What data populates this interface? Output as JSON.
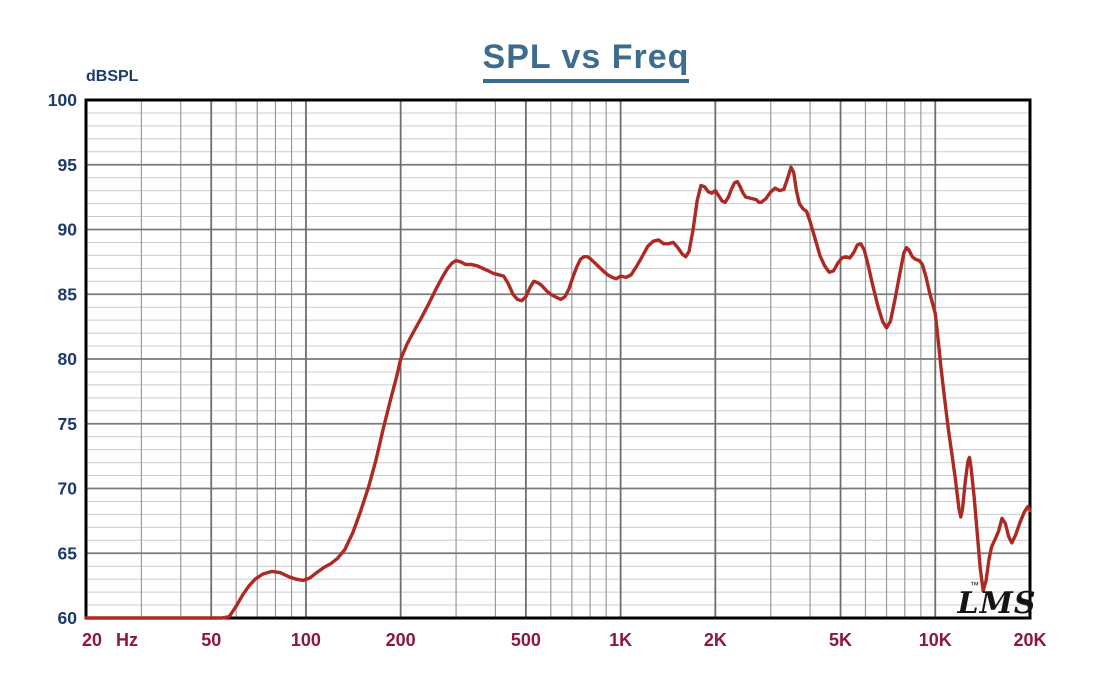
{
  "header": {
    "title": "SPL vs Freq",
    "y_axis_unit": "dBSPL"
  },
  "watermark": {
    "tm": "™",
    "text": "LMS"
  },
  "chart_data": {
    "type": "line",
    "title": "SPL vs Freq",
    "xlabel": "",
    "ylabel": "dBSPL",
    "x_scale": "log",
    "x_range": [
      20,
      20000
    ],
    "y_range": [
      60,
      100
    ],
    "y_major_step": 5,
    "y_minor_step": 1,
    "grid": "on",
    "legend": "none",
    "y_ticks": [
      {
        "value": 100,
        "label": "100"
      },
      {
        "value": 95,
        "label": "95"
      },
      {
        "value": 90,
        "label": "90"
      },
      {
        "value": 85,
        "label": "85"
      },
      {
        "value": 80,
        "label": "80"
      },
      {
        "value": 75,
        "label": "75"
      },
      {
        "value": 70,
        "label": "70"
      },
      {
        "value": 65,
        "label": "65"
      },
      {
        "value": 60,
        "label": "60"
      }
    ],
    "x_ticks_major": [
      {
        "f": 20,
        "label": "20"
      },
      {
        "f": 50,
        "label": "50"
      },
      {
        "f": 100,
        "label": "100"
      },
      {
        "f": 200,
        "label": "200"
      },
      {
        "f": 500,
        "label": "500"
      },
      {
        "f": 1000,
        "label": "1K"
      },
      {
        "f": 2000,
        "label": "2K"
      },
      {
        "f": 5000,
        "label": "5K"
      },
      {
        "f": 10000,
        "label": "10K"
      },
      {
        "f": 20000,
        "label": "20K"
      }
    ],
    "x_unit_label": "Hz",
    "x_ticks_minor": [
      30,
      40,
      60,
      70,
      80,
      90,
      300,
      400,
      600,
      700,
      800,
      900,
      3000,
      4000,
      6000,
      7000,
      8000,
      9000
    ],
    "colors": {
      "curve": "#ad2a24",
      "y_labels": "#1c3a6e",
      "x_labels": "#8e1838",
      "title": "#3d6c8d",
      "grid_minor_h": "#cccccc",
      "grid_major_h": "#7a7a7a",
      "grid_minor_v": "#9a9a9a",
      "grid_major_v": "#6e6e6e",
      "border": "#000000",
      "watermark": "#141414"
    },
    "series": [
      {
        "name": "SPL",
        "points": [
          [
            20,
            60
          ],
          [
            25,
            60
          ],
          [
            30,
            60
          ],
          [
            35,
            60
          ],
          [
            40,
            60
          ],
          [
            45,
            60
          ],
          [
            50,
            60
          ],
          [
            54,
            60
          ],
          [
            57,
            60.1
          ],
          [
            60,
            60.9
          ],
          [
            63,
            61.8
          ],
          [
            66,
            62.5
          ],
          [
            69,
            63.0
          ],
          [
            73,
            63.4
          ],
          [
            78,
            63.6
          ],
          [
            83,
            63.5
          ],
          [
            88,
            63.2
          ],
          [
            93,
            63.0
          ],
          [
            98,
            62.9
          ],
          [
            103,
            63.1
          ],
          [
            108,
            63.5
          ],
          [
            114,
            63.9
          ],
          [
            120,
            64.2
          ],
          [
            126,
            64.6
          ],
          [
            133,
            65.3
          ],
          [
            141,
            66.6
          ],
          [
            149,
            68.2
          ],
          [
            158,
            70.1
          ],
          [
            167,
            72.2
          ],
          [
            176,
            74.6
          ],
          [
            186,
            76.9
          ],
          [
            194,
            78.6
          ],
          [
            200,
            80.0
          ],
          [
            210,
            81.2
          ],
          [
            221,
            82.2
          ],
          [
            233,
            83.2
          ],
          [
            246,
            84.3
          ],
          [
            259,
            85.4
          ],
          [
            271,
            86.3
          ],
          [
            282,
            87.0
          ],
          [
            291,
            87.4
          ],
          [
            300,
            87.6
          ],
          [
            310,
            87.5
          ],
          [
            322,
            87.3
          ],
          [
            336,
            87.3
          ],
          [
            350,
            87.2
          ],
          [
            365,
            87.0
          ],
          [
            380,
            86.8
          ],
          [
            395,
            86.6
          ],
          [
            410,
            86.5
          ],
          [
            425,
            86.4
          ],
          [
            440,
            85.8
          ],
          [
            455,
            85.0
          ],
          [
            470,
            84.6
          ],
          [
            485,
            84.5
          ],
          [
            500,
            84.8
          ],
          [
            515,
            85.5
          ],
          [
            530,
            86.0
          ],
          [
            545,
            85.9
          ],
          [
            560,
            85.7
          ],
          [
            580,
            85.3
          ],
          [
            600,
            85.0
          ],
          [
            620,
            84.8
          ],
          [
            645,
            84.6
          ],
          [
            665,
            84.8
          ],
          [
            685,
            85.4
          ],
          [
            705,
            86.3
          ],
          [
            725,
            87.1
          ],
          [
            745,
            87.7
          ],
          [
            765,
            87.9
          ],
          [
            785,
            87.9
          ],
          [
            805,
            87.7
          ],
          [
            830,
            87.4
          ],
          [
            855,
            87.1
          ],
          [
            880,
            86.8
          ],
          [
            910,
            86.5
          ],
          [
            940,
            86.3
          ],
          [
            970,
            86.2
          ],
          [
            1000,
            86.4
          ],
          [
            1040,
            86.3
          ],
          [
            1080,
            86.5
          ],
          [
            1120,
            87.1
          ],
          [
            1170,
            87.9
          ],
          [
            1220,
            88.7
          ],
          [
            1270,
            89.1
          ],
          [
            1320,
            89.2
          ],
          [
            1370,
            88.9
          ],
          [
            1420,
            88.9
          ],
          [
            1470,
            89.0
          ],
          [
            1520,
            88.6
          ],
          [
            1570,
            88.1
          ],
          [
            1610,
            87.9
          ],
          [
            1650,
            88.3
          ],
          [
            1700,
            90.0
          ],
          [
            1750,
            92.2
          ],
          [
            1800,
            93.4
          ],
          [
            1850,
            93.3
          ],
          [
            1900,
            92.9
          ],
          [
            1950,
            92.8
          ],
          [
            2000,
            93.0
          ],
          [
            2050,
            92.6
          ],
          [
            2100,
            92.2
          ],
          [
            2150,
            92.1
          ],
          [
            2200,
            92.5
          ],
          [
            2250,
            93.1
          ],
          [
            2300,
            93.6
          ],
          [
            2350,
            93.7
          ],
          [
            2400,
            93.3
          ],
          [
            2450,
            92.8
          ],
          [
            2500,
            92.5
          ],
          [
            2600,
            92.4
          ],
          [
            2700,
            92.3
          ],
          [
            2750,
            92.1
          ],
          [
            2800,
            92.1
          ],
          [
            2900,
            92.4
          ],
          [
            3000,
            92.9
          ],
          [
            3100,
            93.2
          ],
          [
            3200,
            93.0
          ],
          [
            3300,
            93.1
          ],
          [
            3400,
            94.0
          ],
          [
            3480,
            94.8
          ],
          [
            3550,
            94.4
          ],
          [
            3620,
            93.0
          ],
          [
            3700,
            92.0
          ],
          [
            3800,
            91.6
          ],
          [
            3900,
            91.4
          ],
          [
            4000,
            90.6
          ],
          [
            4150,
            89.3
          ],
          [
            4300,
            88.0
          ],
          [
            4450,
            87.2
          ],
          [
            4600,
            86.7
          ],
          [
            4750,
            86.8
          ],
          [
            4900,
            87.4
          ],
          [
            5050,
            87.8
          ],
          [
            5200,
            87.9
          ],
          [
            5350,
            87.8
          ],
          [
            5500,
            88.2
          ],
          [
            5650,
            88.8
          ],
          [
            5800,
            88.9
          ],
          [
            5950,
            88.4
          ],
          [
            6100,
            87.4
          ],
          [
            6300,
            85.9
          ],
          [
            6550,
            84.2
          ],
          [
            6800,
            82.9
          ],
          [
            7000,
            82.4
          ],
          [
            7200,
            82.9
          ],
          [
            7450,
            84.6
          ],
          [
            7700,
            86.5
          ],
          [
            7950,
            88.2
          ],
          [
            8100,
            88.6
          ],
          [
            8250,
            88.4
          ],
          [
            8450,
            87.9
          ],
          [
            8650,
            87.7
          ],
          [
            8900,
            87.6
          ],
          [
            9100,
            87.3
          ],
          [
            9350,
            86.3
          ],
          [
            9600,
            85.1
          ],
          [
            9800,
            84.3
          ],
          [
            10000,
            83.5
          ],
          [
            10200,
            81.6
          ],
          [
            10400,
            79.6
          ],
          [
            10700,
            77.0
          ],
          [
            11000,
            74.6
          ],
          [
            11300,
            72.6
          ],
          [
            11600,
            70.6
          ],
          [
            11900,
            68.4
          ],
          [
            12050,
            67.8
          ],
          [
            12200,
            68.4
          ],
          [
            12450,
            70.5
          ],
          [
            12700,
            72.1
          ],
          [
            12850,
            72.4
          ],
          [
            13000,
            71.6
          ],
          [
            13300,
            69.3
          ],
          [
            13600,
            66.5
          ],
          [
            13900,
            63.8
          ],
          [
            14200,
            62.1
          ],
          [
            14500,
            62.9
          ],
          [
            14800,
            64.5
          ],
          [
            15100,
            65.5
          ],
          [
            15500,
            66.1
          ],
          [
            15900,
            66.7
          ],
          [
            16300,
            67.7
          ],
          [
            16700,
            67.3
          ],
          [
            17100,
            66.3
          ],
          [
            17500,
            65.8
          ],
          [
            18000,
            66.4
          ],
          [
            18600,
            67.4
          ],
          [
            19200,
            68.2
          ],
          [
            19700,
            68.6
          ],
          [
            20000,
            68.3
          ]
        ]
      }
    ]
  }
}
